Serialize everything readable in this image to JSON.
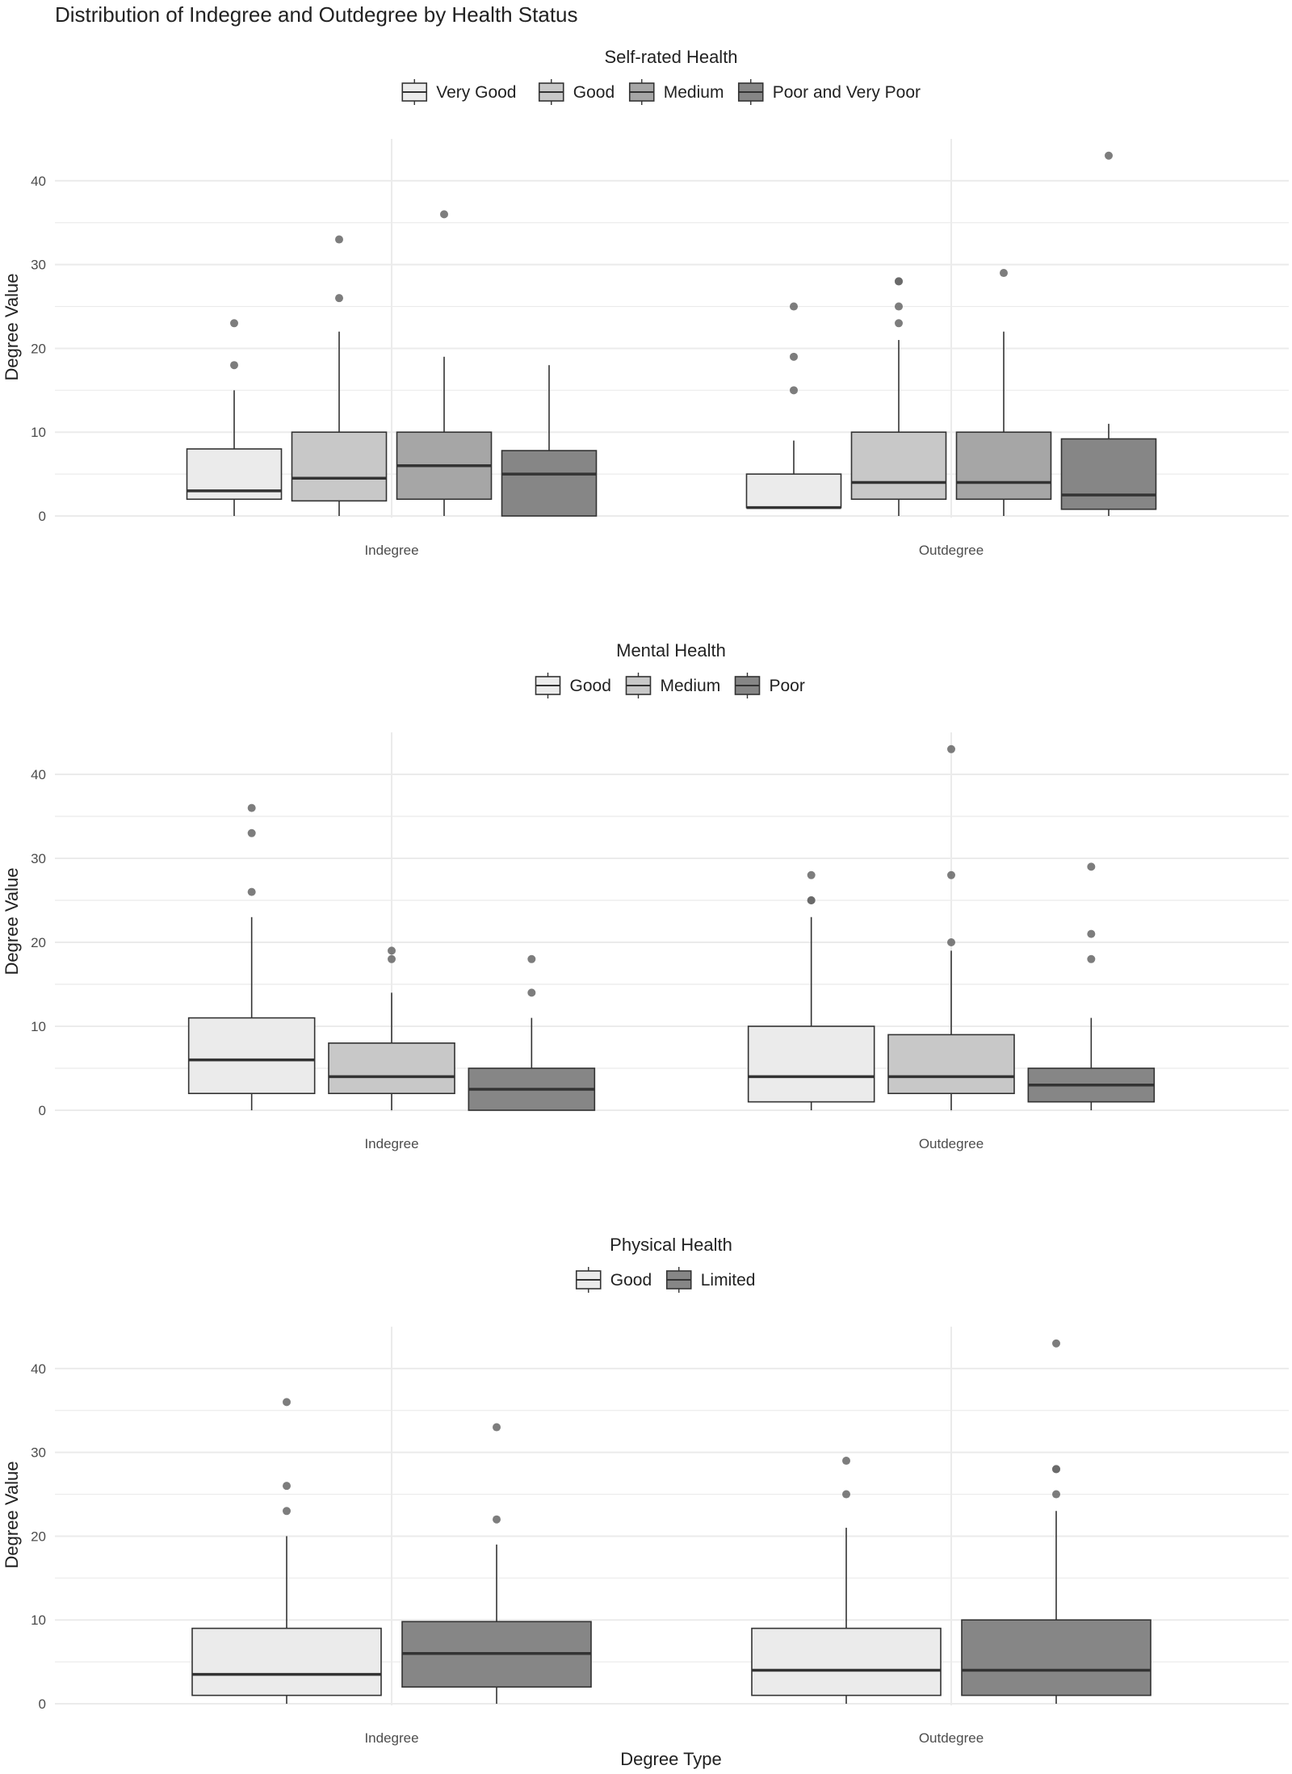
{
  "page_title": "Distribution of Indegree and Outdegree by Health Status",
  "x_axis_title": "Degree Type",
  "colors": {
    "grid": "#ebebeb",
    "box_stroke": "#333333",
    "median": "#333333",
    "outlier": "#666666",
    "text": "#222222",
    "tick_text": "#4d4d4d"
  },
  "chart_data": [
    {
      "type": "boxplot",
      "legend_title": "Self-rated Health",
      "ylabel": "Degree Value",
      "ylim": [
        0,
        45
      ],
      "yticks": [
        0,
        10,
        20,
        30,
        40
      ],
      "categories": [
        "Indegree",
        "Outdegree"
      ],
      "groups": [
        {
          "name": "Very Good",
          "color": "#ebebeb"
        },
        {
          "name": "Good",
          "color": "#c8c8c8"
        },
        {
          "name": "Medium",
          "color": "#a6a6a6"
        },
        {
          "name": "Poor and Very Poor",
          "color": "#868686"
        }
      ],
      "boxes": [
        [
          {
            "min": 0,
            "q1": 2,
            "median": 3,
            "q3": 8,
            "max": 15,
            "outliers": [
              18,
              23
            ]
          },
          {
            "min": 0,
            "q1": 1.8,
            "median": 4.5,
            "q3": 10,
            "max": 22,
            "outliers": [
              26,
              33
            ]
          },
          {
            "min": 0,
            "q1": 2,
            "median": 6,
            "q3": 10,
            "max": 19,
            "outliers": [
              36
            ]
          },
          {
            "min": 0,
            "q1": 0,
            "median": 5,
            "q3": 7.8,
            "max": 18,
            "outliers": []
          }
        ],
        [
          {
            "min": 1,
            "q1": 1,
            "median": 1,
            "q3": 5,
            "max": 9,
            "outliers": [
              15,
              19,
              25
            ]
          },
          {
            "min": 0,
            "q1": 2,
            "median": 4,
            "q3": 10,
            "max": 21,
            "outliers": [
              23,
              25,
              28,
              28
            ]
          },
          {
            "min": 0,
            "q1": 2,
            "median": 4,
            "q3": 10,
            "max": 22,
            "outliers": [
              29
            ]
          },
          {
            "min": 0,
            "q1": 0.8,
            "median": 2.5,
            "q3": 9.2,
            "max": 11,
            "outliers": [
              43
            ]
          }
        ]
      ]
    },
    {
      "type": "boxplot",
      "legend_title": "Mental Health",
      "ylabel": "Degree Value",
      "ylim": [
        0,
        45
      ],
      "yticks": [
        0,
        10,
        20,
        30,
        40
      ],
      "categories": [
        "Indegree",
        "Outdegree"
      ],
      "groups": [
        {
          "name": "Good",
          "color": "#ebebeb"
        },
        {
          "name": "Medium",
          "color": "#c8c8c8"
        },
        {
          "name": "Poor",
          "color": "#868686"
        }
      ],
      "boxes": [
        [
          {
            "min": 0,
            "q1": 2,
            "median": 6,
            "q3": 11,
            "max": 23,
            "outliers": [
              26,
              33,
              36
            ]
          },
          {
            "min": 0,
            "q1": 2,
            "median": 4,
            "q3": 8,
            "max": 14,
            "outliers": [
              18,
              19
            ]
          },
          {
            "min": 0,
            "q1": 0,
            "median": 2.5,
            "q3": 5,
            "max": 11,
            "outliers": [
              14,
              18
            ]
          }
        ],
        [
          {
            "min": 0,
            "q1": 1,
            "median": 4,
            "q3": 10,
            "max": 23,
            "outliers": [
              25,
              25,
              28
            ]
          },
          {
            "min": 0,
            "q1": 2,
            "median": 4,
            "q3": 9,
            "max": 19,
            "outliers": [
              20,
              28,
              43
            ]
          },
          {
            "min": 0,
            "q1": 1,
            "median": 3,
            "q3": 5,
            "max": 11,
            "outliers": [
              18,
              21,
              29
            ]
          }
        ]
      ]
    },
    {
      "type": "boxplot",
      "legend_title": "Physical Health",
      "ylabel": "Degree Value",
      "xlabel": "Degree Type",
      "ylim": [
        0,
        45
      ],
      "yticks": [
        0,
        10,
        20,
        30,
        40
      ],
      "categories": [
        "Indegree",
        "Outdegree"
      ],
      "groups": [
        {
          "name": "Good",
          "color": "#ebebeb"
        },
        {
          "name": "Limited",
          "color": "#868686"
        }
      ],
      "boxes": [
        [
          {
            "min": 0,
            "q1": 1,
            "median": 3.5,
            "q3": 9,
            "max": 20,
            "outliers": [
              23,
              26,
              36
            ]
          },
          {
            "min": 0,
            "q1": 2,
            "median": 6,
            "q3": 9.8,
            "max": 19,
            "outliers": [
              22,
              33
            ]
          }
        ],
        [
          {
            "min": 0,
            "q1": 1,
            "median": 4,
            "q3": 9,
            "max": 21,
            "outliers": [
              25,
              29
            ]
          },
          {
            "min": 0,
            "q1": 1,
            "median": 4,
            "q3": 10,
            "max": 23,
            "outliers": [
              25,
              28,
              28,
              43
            ]
          }
        ]
      ]
    }
  ]
}
